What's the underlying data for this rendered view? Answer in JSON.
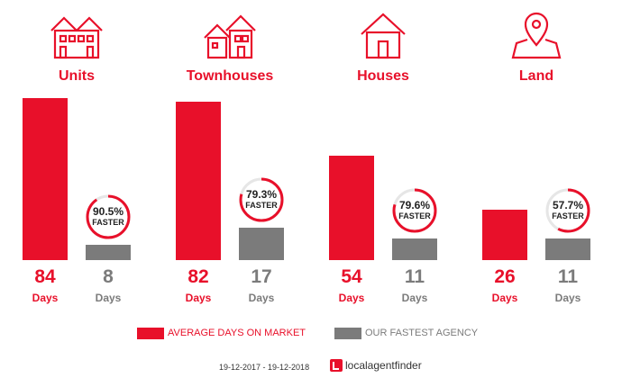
{
  "categories": [
    {
      "label": "Units",
      "icon": "units-icon",
      "avg_days": 84,
      "avg_unit": "Days",
      "fast_days": 8,
      "fast_unit": "Days",
      "faster_pct": "90.5%",
      "faster_label": "FASTER",
      "faster_fraction": 0.905
    },
    {
      "label": "Townhouses",
      "icon": "townhouse-icon",
      "avg_days": 82,
      "avg_unit": "Days",
      "fast_days": 17,
      "fast_unit": "Days",
      "faster_pct": "79.3%",
      "faster_label": "FASTER",
      "faster_fraction": 0.793
    },
    {
      "label": "Houses",
      "icon": "house-icon",
      "avg_days": 54,
      "avg_unit": "Days",
      "fast_days": 11,
      "fast_unit": "Days",
      "faster_pct": "79.6%",
      "faster_label": "FASTER",
      "faster_fraction": 0.796
    },
    {
      "label": "Land",
      "icon": "map-pin-icon",
      "avg_days": 26,
      "avg_unit": "Days",
      "fast_days": 11,
      "fast_unit": "Days",
      "faster_pct": "57.7%",
      "faster_label": "FASTER",
      "faster_fraction": 0.577
    }
  ],
  "legend": {
    "avg_label": "AVERAGE DAYS ON MARKET",
    "fast_label": "OUR FASTEST AGENCY"
  },
  "footer": {
    "date_range": "19-12-2017 - 19-12-2018",
    "brand": "localagentfinder"
  },
  "colors": {
    "accent": "#e8102a",
    "grey": "#7b7b7b"
  },
  "chart_data": {
    "type": "bar",
    "categories": [
      "Units",
      "Townhouses",
      "Houses",
      "Land"
    ],
    "series": [
      {
        "name": "AVERAGE DAYS ON MARKET",
        "values": [
          84,
          82,
          54,
          26
        ]
      },
      {
        "name": "OUR FASTEST AGENCY",
        "values": [
          8,
          17,
          11,
          11
        ]
      }
    ],
    "annotations": [
      "90.5% FASTER",
      "79.3% FASTER",
      "79.6% FASTER",
      "57.7% FASTER"
    ],
    "ylim": [
      0,
      84
    ],
    "grid": false,
    "legend": "bottom"
  }
}
